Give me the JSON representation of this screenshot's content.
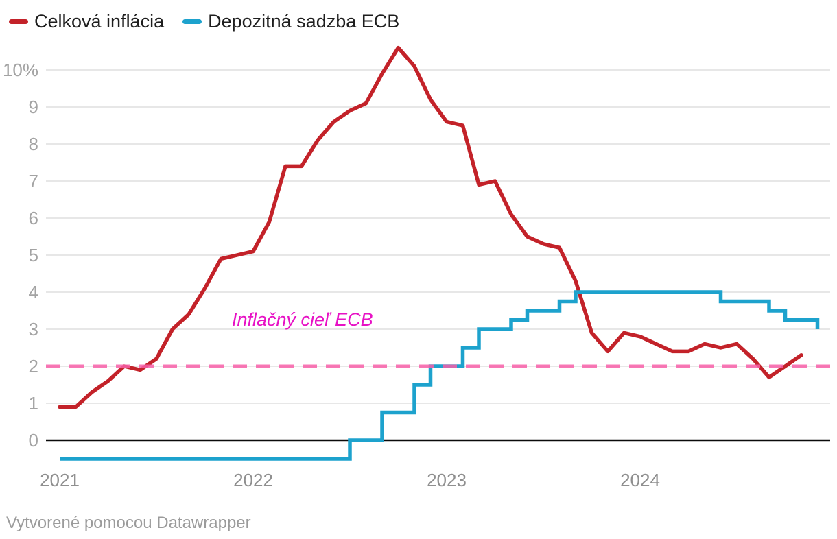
{
  "legend": {
    "items": [
      {
        "label": "Celková inflácia",
        "color": "#c32229"
      },
      {
        "label": "Depozitná sadzba ECB",
        "color": "#1da2cd"
      }
    ]
  },
  "annotation": {
    "text": "Inflačný cieľ ECB",
    "color": "#e712c5"
  },
  "footer": {
    "text": "Vytvorené pomocou Datawrapper"
  },
  "chart_data": {
    "type": "line",
    "title": "",
    "x_range": [
      "2021-01",
      "2024-12"
    ],
    "x_tick_labels": [
      "2021",
      "2022",
      "2023",
      "2024"
    ],
    "x_tick_month_offsets": [
      0,
      12,
      24,
      36
    ],
    "y_tick_labels": [
      "10%",
      "9",
      "8",
      "7",
      "6",
      "5",
      "4",
      "3",
      "2",
      "1",
      "0"
    ],
    "y_tick_values": [
      10,
      9,
      8,
      7,
      6,
      5,
      4,
      3,
      2,
      1,
      0
    ],
    "ylim": [
      -0.7,
      10.8
    ],
    "grid": "horizontal-only",
    "legend_position": "top-left",
    "zero_line_color": "#0a0a0a",
    "gridline_color": "#e7e7e7",
    "target_line": {
      "value": 2,
      "label": "Inflačný cieľ ECB",
      "color": "#f75fa8",
      "style": "dashed"
    },
    "series": [
      {
        "name": "Celková inflácia",
        "color": "#c32229",
        "shape": "linear",
        "start_month": "2021-01",
        "values": [
          0.9,
          0.9,
          1.3,
          1.6,
          2.0,
          1.9,
          2.2,
          3.0,
          3.4,
          4.1,
          4.9,
          5.0,
          5.1,
          5.9,
          7.4,
          7.4,
          8.1,
          8.6,
          8.9,
          9.1,
          9.9,
          10.6,
          10.1,
          9.2,
          8.6,
          8.5,
          6.9,
          7.0,
          6.1,
          5.5,
          5.3,
          5.2,
          4.3,
          2.9,
          2.4,
          2.9,
          2.8,
          2.6,
          2.4,
          2.4,
          2.6,
          2.5,
          2.6,
          2.2,
          1.7,
          2.0,
          2.3
        ]
      },
      {
        "name": "Depozitná sadzba ECB",
        "color": "#1da2cd",
        "shape": "step",
        "start_month": "2021-01",
        "values": [
          -0.5,
          -0.5,
          -0.5,
          -0.5,
          -0.5,
          -0.5,
          -0.5,
          -0.5,
          -0.5,
          -0.5,
          -0.5,
          -0.5,
          -0.5,
          -0.5,
          -0.5,
          -0.5,
          -0.5,
          -0.5,
          0.0,
          0.0,
          0.75,
          0.75,
          1.5,
          2.0,
          2.0,
          2.5,
          3.0,
          3.0,
          3.25,
          3.5,
          3.5,
          3.75,
          4.0,
          4.0,
          4.0,
          4.0,
          4.0,
          4.0,
          4.0,
          4.0,
          4.0,
          3.75,
          3.75,
          3.75,
          3.5,
          3.25,
          3.25,
          3.0
        ]
      }
    ]
  }
}
